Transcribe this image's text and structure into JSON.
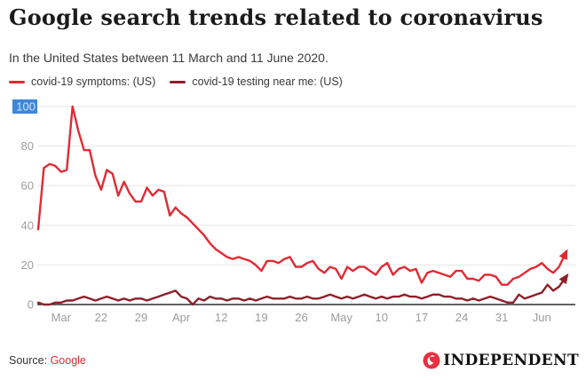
{
  "header": {
    "title": "Google search trends related to coronavirus",
    "subtitle": "In the United States between 11 March and 11 June 2020."
  },
  "colors": {
    "series_bright": "#e12a33",
    "series_dark": "#8e1f29",
    "grid": "#e6e6e6",
    "axis_line": "#2e2e2e",
    "axis_text": "#9c9c9c",
    "selection_blue": "#3d87d8",
    "selection_text": "#d9e1ec",
    "source_link": "#e12a33",
    "logo_red": "#e43140"
  },
  "chart_data": {
    "type": "line",
    "title": "Google search trends related to coronavirus",
    "subtitle": "In the United States between 11 March and 11 June 2020.",
    "x_unit": "day",
    "date_range": "11 March - 11 June 2020",
    "grid": "horizontal",
    "legend_position": "top-left",
    "end_arrows": true,
    "ylim": [
      0,
      100
    ],
    "y_ticks": [
      0,
      20,
      40,
      60,
      80,
      100
    ],
    "highlighted_y_label": "100",
    "x_tick_indices": [
      4,
      11,
      18,
      25,
      32,
      39,
      46,
      53,
      60,
      67,
      74,
      81,
      88
    ],
    "x_tick_labels": [
      "Mar",
      "22",
      "29",
      "Apr",
      "12",
      "19",
      "26",
      "May",
      "10",
      "17",
      "24",
      "31",
      "Jun"
    ],
    "dates": [
      "11 Mar",
      "12 Mar",
      "13 Mar",
      "14 Mar",
      "15 Mar",
      "16 Mar",
      "17 Mar",
      "18 Mar",
      "19 Mar",
      "20 Mar",
      "21 Mar",
      "22 Mar",
      "23 Mar",
      "24 Mar",
      "25 Mar",
      "26 Mar",
      "27 Mar",
      "28 Mar",
      "29 Mar",
      "30 Mar",
      "31 Mar",
      "1 Apr",
      "2 Apr",
      "3 Apr",
      "4 Apr",
      "5 Apr",
      "6 Apr",
      "7 Apr",
      "8 Apr",
      "9 Apr",
      "10 Apr",
      "11 Apr",
      "12 Apr",
      "13 Apr",
      "14 Apr",
      "15 Apr",
      "16 Apr",
      "17 Apr",
      "18 Apr",
      "19 Apr",
      "20 Apr",
      "21 Apr",
      "22 Apr",
      "23 Apr",
      "24 Apr",
      "25 Apr",
      "26 Apr",
      "27 Apr",
      "28 Apr",
      "29 Apr",
      "30 Apr",
      "1 May",
      "2 May",
      "3 May",
      "4 May",
      "5 May",
      "6 May",
      "7 May",
      "8 May",
      "9 May",
      "10 May",
      "11 May",
      "12 May",
      "13 May",
      "14 May",
      "15 May",
      "16 May",
      "17 May",
      "18 May",
      "19 May",
      "20 May",
      "21 May",
      "22 May",
      "23 May",
      "24 May",
      "25 May",
      "26 May",
      "27 May",
      "28 May",
      "29 May",
      "30 May",
      "31 May",
      "1 Jun",
      "2 Jun",
      "3 Jun",
      "4 Jun",
      "5 Jun",
      "6 Jun",
      "7 Jun",
      "8 Jun",
      "9 Jun",
      "10 Jun",
      "11 Jun"
    ],
    "series": [
      {
        "name": "covid-19 symptoms: (US)",
        "color": "#e12a33",
        "values": [
          38,
          69,
          71,
          70,
          67,
          68,
          100,
          88,
          78,
          78,
          65,
          58,
          68,
          66,
          55,
          62,
          56,
          52,
          52,
          59,
          55,
          58,
          57,
          45,
          49,
          46,
          44,
          41,
          38,
          35,
          31,
          28,
          26,
          24,
          23,
          24,
          23,
          22,
          20,
          17,
          22,
          22,
          21,
          23,
          24,
          19,
          19,
          21,
          22,
          18,
          16,
          19,
          18,
          13,
          19,
          17,
          19,
          19,
          17,
          15,
          19,
          21,
          15,
          18,
          19,
          17,
          18,
          11,
          16,
          17,
          16,
          15,
          14,
          17,
          17,
          13,
          13,
          12,
          15,
          15,
          14,
          10,
          10,
          13,
          14,
          16,
          18,
          19,
          21,
          18,
          16,
          19,
          25
        ]
      },
      {
        "name": "covid-19 testing near me: (US)",
        "color": "#8e1f29",
        "values": [
          1,
          0,
          0,
          1,
          1,
          2,
          2,
          3,
          4,
          3,
          2,
          3,
          4,
          3,
          2,
          3,
          2,
          3,
          3,
          2,
          3,
          4,
          5,
          6,
          7,
          4,
          3,
          0,
          3,
          2,
          4,
          3,
          3,
          2,
          3,
          3,
          2,
          3,
          2,
          3,
          4,
          3,
          3,
          3,
          4,
          3,
          3,
          4,
          3,
          3,
          4,
          5,
          4,
          3,
          4,
          3,
          4,
          5,
          4,
          3,
          4,
          3,
          4,
          4,
          5,
          4,
          4,
          3,
          4,
          5,
          5,
          4,
          4,
          3,
          3,
          2,
          3,
          2,
          3,
          4,
          3,
          2,
          1,
          1,
          5,
          3,
          4,
          5,
          6,
          10,
          7,
          9,
          13
        ]
      }
    ]
  },
  "footer": {
    "source_label": "Source:",
    "source_link_text": "Google",
    "brand": "INDEPENDENT"
  }
}
